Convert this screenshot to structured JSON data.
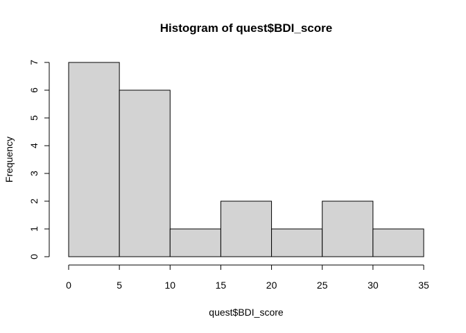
{
  "chart_data": {
    "type": "bar",
    "title": "Histogram of quest$BDI_score",
    "xlabel": "quest$BDI_score",
    "ylabel": "Frequency",
    "bins": [
      {
        "start": 0,
        "end": 5,
        "count": 7
      },
      {
        "start": 5,
        "end": 10,
        "count": 6
      },
      {
        "start": 10,
        "end": 15,
        "count": 1
      },
      {
        "start": 15,
        "end": 20,
        "count": 2
      },
      {
        "start": 20,
        "end": 25,
        "count": 1
      },
      {
        "start": 25,
        "end": 30,
        "count": 2
      },
      {
        "start": 30,
        "end": 35,
        "count": 1
      }
    ],
    "x_ticks": [
      0,
      5,
      10,
      15,
      20,
      25,
      30,
      35
    ],
    "y_ticks": [
      0,
      1,
      2,
      3,
      4,
      5,
      6,
      7
    ],
    "xlim": [
      0,
      35
    ],
    "ylim": [
      0,
      7
    ],
    "grid": false,
    "bar_color": "#d3d3d3",
    "edge_color": "#000000"
  }
}
